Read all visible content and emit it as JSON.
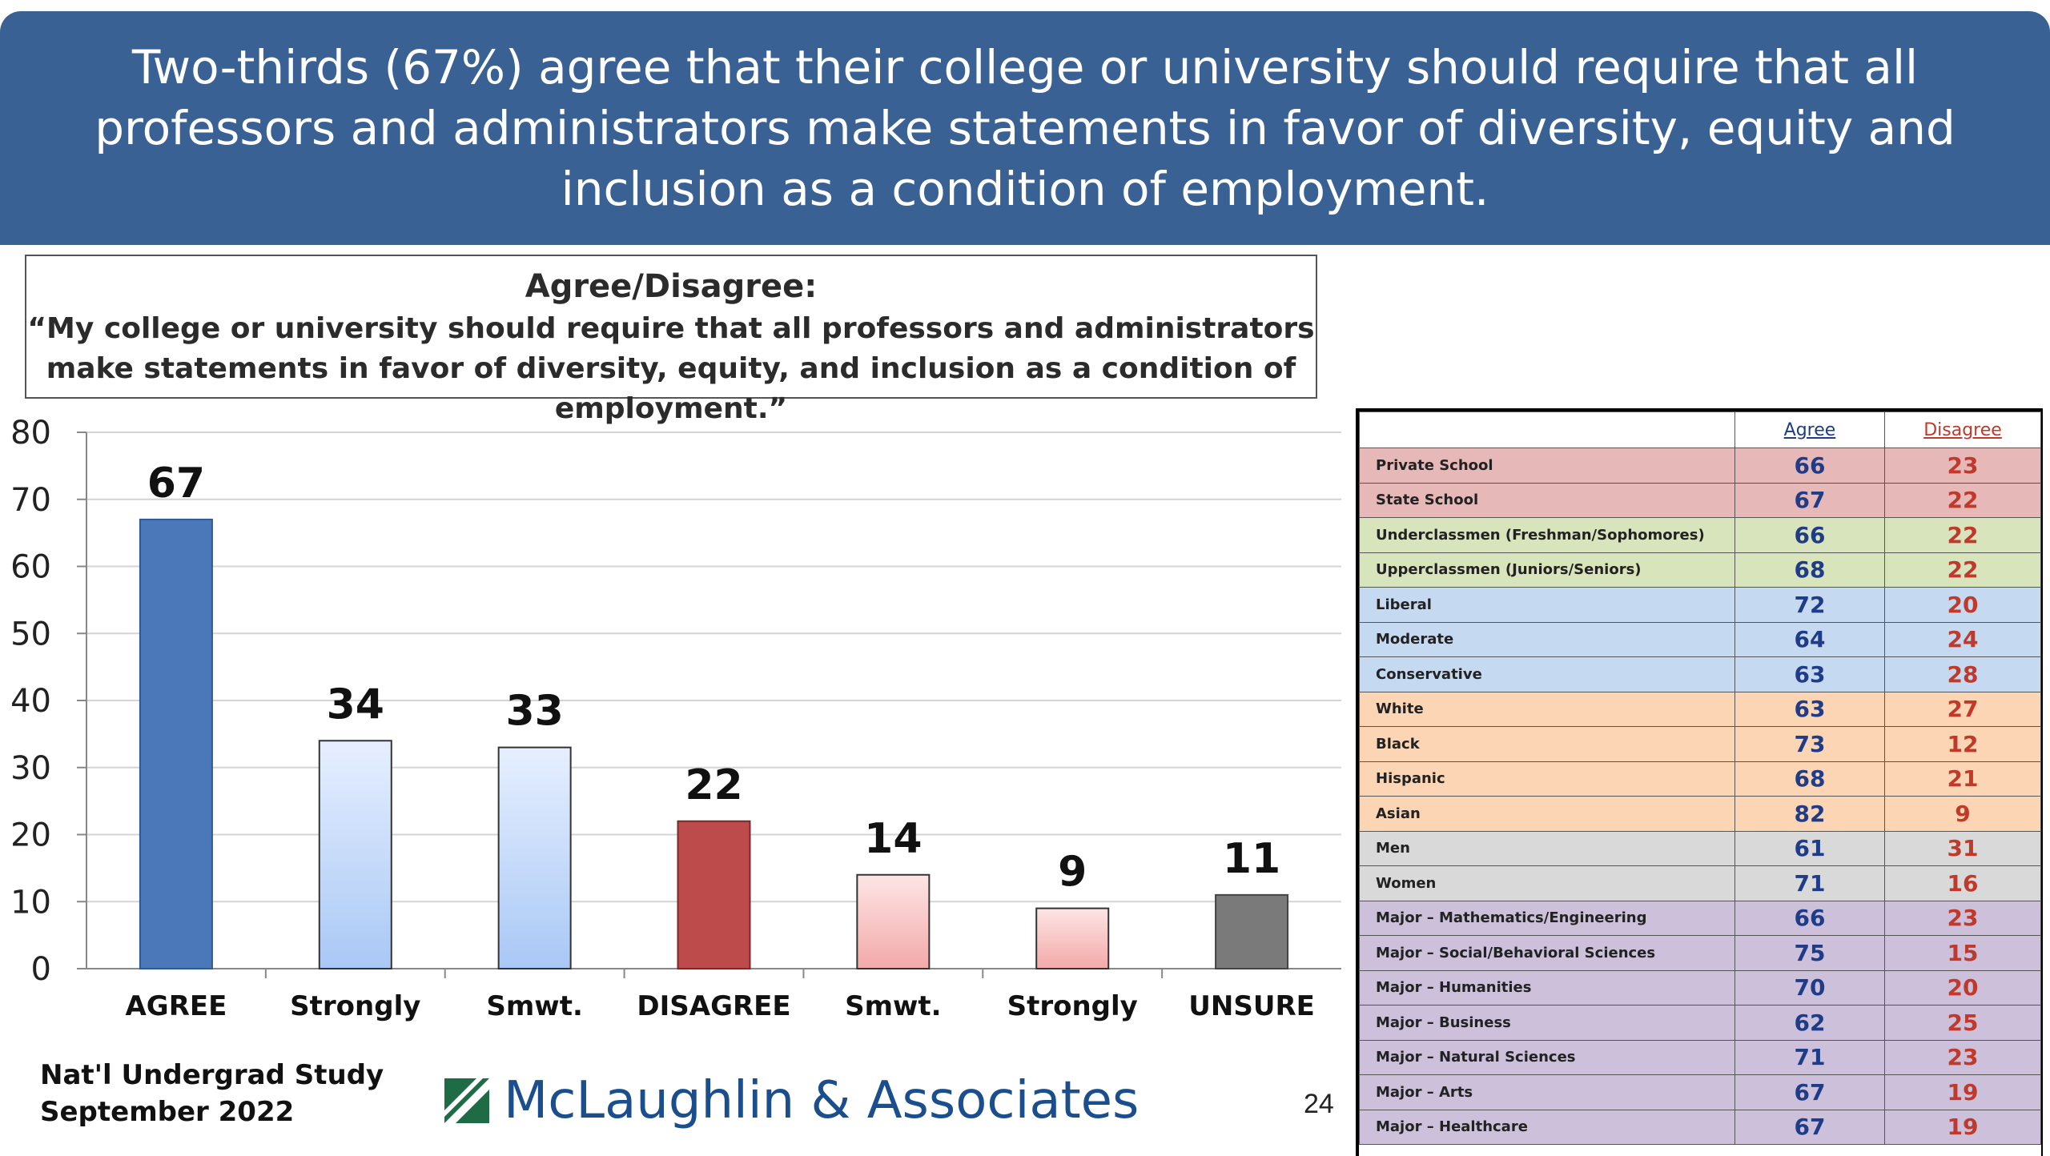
{
  "header": {
    "title": "Two-thirds (67%) agree that their college or university should require that all professors and administrators make statements in favor of diversity, equity and inclusion as a condition of employment."
  },
  "question": {
    "title": "Agree/Disagree:",
    "text": "“My college or university should require that all professors and administrators make statements in favor of diversity, equity, and inclusion as a condition of employment.”"
  },
  "chart_data": {
    "type": "bar",
    "categories": [
      "AGREE",
      "Strongly",
      "Smwt.",
      "DISAGREE",
      "Smwt.",
      "Strongly",
      "UNSURE"
    ],
    "values": [
      67,
      34,
      33,
      22,
      14,
      9,
      11
    ],
    "ylim": [
      0,
      80
    ],
    "yticks": [
      0,
      10,
      20,
      30,
      40,
      50,
      60,
      70,
      80
    ],
    "grid": true,
    "bar_colors": [
      "#4a78b8",
      "#c9dcfb",
      "#c9dcfb",
      "#bd4b4b",
      "#f8c1c1",
      "#f8c1c1",
      "#7a7a7a"
    ]
  },
  "table": {
    "headers": [
      "",
      "Agree",
      "Disagree"
    ],
    "rows": [
      {
        "label": "Private School",
        "agree": "66",
        "disagree": "23",
        "color": "#e6b8b7"
      },
      {
        "label": "State School",
        "agree": "67",
        "disagree": "22",
        "color": "#e6b8b7"
      },
      {
        "label": "Underclassmen (Freshman/Sophomores)",
        "agree": "66",
        "disagree": "22",
        "color": "#d8e4bc"
      },
      {
        "label": "Upperclassmen (Juniors/Seniors)",
        "agree": "68",
        "disagree": "22",
        "color": "#d8e4bc"
      },
      {
        "label": "Liberal",
        "agree": "72",
        "disagree": "20",
        "color": "#c5d9f1"
      },
      {
        "label": "Moderate",
        "agree": "64",
        "disagree": "24",
        "color": "#c5d9f1"
      },
      {
        "label": "Conservative",
        "agree": "63",
        "disagree": "28",
        "color": "#c5d9f1"
      },
      {
        "label": "White",
        "agree": "63",
        "disagree": "27",
        "color": "#fcd5b4"
      },
      {
        "label": "Black",
        "agree": "73",
        "disagree": "12",
        "color": "#fcd5b4"
      },
      {
        "label": "Hispanic",
        "agree": "68",
        "disagree": "21",
        "color": "#fcd5b4"
      },
      {
        "label": "Asian",
        "agree": "82",
        "disagree": "9",
        "color": "#fcd5b4"
      },
      {
        "label": "Men",
        "agree": "61",
        "disagree": "31",
        "color": "#d9d9d9"
      },
      {
        "label": "Women",
        "agree": "71",
        "disagree": "16",
        "color": "#d9d9d9"
      },
      {
        "label": "Major – Mathematics/Engineering",
        "agree": "66",
        "disagree": "23",
        "color": "#ccc0da"
      },
      {
        "label": "Major – Social/Behavioral Sciences",
        "agree": "75",
        "disagree": "15",
        "color": "#ccc0da"
      },
      {
        "label": "Major – Humanities",
        "agree": "70",
        "disagree": "20",
        "color": "#ccc0da"
      },
      {
        "label": "Major – Business",
        "agree": "62",
        "disagree": "25",
        "color": "#ccc0da"
      },
      {
        "label": "Major – Natural Sciences",
        "agree": "71",
        "disagree": "23",
        "color": "#ccc0da"
      },
      {
        "label": "Major – Arts",
        "agree": "67",
        "disagree": "19",
        "color": "#ccc0da"
      },
      {
        "label": "Major – Healthcare",
        "agree": "67",
        "disagree": "19",
        "color": "#ccc0da"
      }
    ]
  },
  "footer": {
    "study_line1": "Nat'l Undergrad Study",
    "study_line2": "September 2022",
    "logo_text": "McLaughlin & Associates",
    "page_number": "24"
  }
}
